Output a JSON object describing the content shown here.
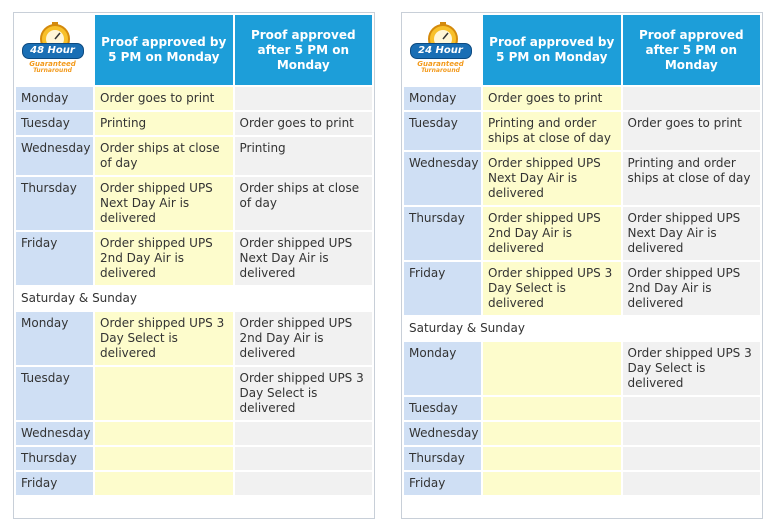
{
  "colors": {
    "header_bg": "#1d9ed9",
    "day_bg": "#cfdff4",
    "before_bg": "#fdfccc",
    "after_bg": "#f1f1f1",
    "logo_badge": "#1a6fb5",
    "logo_accent": "#f39a1c"
  },
  "schedules": [
    {
      "logo": {
        "badge": "48 Hour",
        "guaranteed": "Guaranteed",
        "turnaround": "Turnaround"
      },
      "headers": {
        "before": "Proof approved by 5 PM on Monday",
        "after": "Proof approved after 5 PM on Monday"
      },
      "weekend_label": "Saturday & Sunday",
      "week1": [
        {
          "day": "Monday",
          "before": "Order goes to print",
          "after": ""
        },
        {
          "day": "Tuesday",
          "before": "Printing",
          "after": "Order goes to print"
        },
        {
          "day": "Wednesday",
          "before": "Order ships at close of day",
          "after": "Printing"
        },
        {
          "day": "Thursday",
          "before": "Order shipped UPS Next Day Air is delivered",
          "after": "Order ships at close of day"
        },
        {
          "day": "Friday",
          "before": "Order shipped UPS 2nd Day Air is delivered",
          "after": "Order shipped UPS Next Day Air is delivered"
        }
      ],
      "week2": [
        {
          "day": "Monday",
          "before": "Order shipped UPS 3 Day Select is delivered",
          "after": "Order shipped UPS 2nd Day Air is delivered"
        },
        {
          "day": "Tuesday",
          "before": "",
          "after": "Order shipped UPS 3 Day Select is delivered"
        },
        {
          "day": "Wednesday",
          "before": "",
          "after": ""
        },
        {
          "day": "Thursday",
          "before": "",
          "after": ""
        },
        {
          "day": "Friday",
          "before": "",
          "after": ""
        }
      ]
    },
    {
      "logo": {
        "badge": "24 Hour",
        "guaranteed": "Guaranteed",
        "turnaround": "Turnaround"
      },
      "headers": {
        "before": "Proof approved by 5 PM on Monday",
        "after": "Proof approved after 5 PM on Monday"
      },
      "weekend_label": "Saturday & Sunday",
      "week1": [
        {
          "day": "Monday",
          "before": "Order goes to print",
          "after": ""
        },
        {
          "day": "Tuesday",
          "before": "Printing and order ships at close of day",
          "after": "Order goes to print"
        },
        {
          "day": "Wednesday",
          "before": "Order shipped UPS Next Day Air is delivered",
          "after": "Printing and order ships at close of day"
        },
        {
          "day": "Thursday",
          "before": "Order shipped UPS 2nd Day Air is delivered",
          "after": "Order shipped UPS Next Day Air is delivered"
        },
        {
          "day": "Friday",
          "before": "Order shipped UPS 3 Day Select is delivered",
          "after": "Order shipped UPS 2nd Day Air is delivered"
        }
      ],
      "week2": [
        {
          "day": "Monday",
          "before": "",
          "after": "Order shipped UPS 3 Day Select is delivered"
        },
        {
          "day": "Tuesday",
          "before": "",
          "after": ""
        },
        {
          "day": "Wednesday",
          "before": "",
          "after": ""
        },
        {
          "day": "Thursday",
          "before": "",
          "after": ""
        },
        {
          "day": "Friday",
          "before": "",
          "after": ""
        }
      ]
    }
  ]
}
